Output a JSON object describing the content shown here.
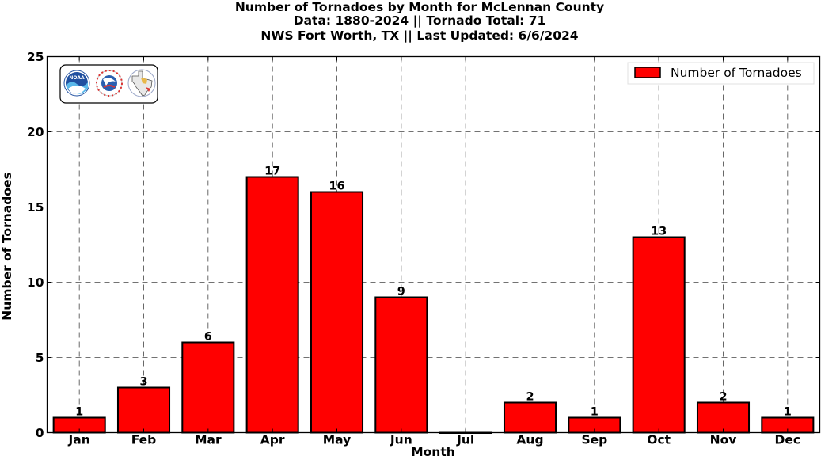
{
  "chart_data": {
    "type": "bar",
    "title_lines": [
      "Number of Tornadoes by Month for McLennan County",
      "Data: 1880-2024 || Tornado Total: 71",
      "NWS Fort Worth, TX || Last Updated: 6/6/2024"
    ],
    "xlabel": "Month",
    "ylabel": "Number of Tornadoes",
    "categories": [
      "Jan",
      "Feb",
      "Mar",
      "Apr",
      "May",
      "Jun",
      "Jul",
      "Aug",
      "Sep",
      "Oct",
      "Nov",
      "Dec"
    ],
    "values": [
      1,
      3,
      6,
      17,
      16,
      9,
      0,
      2,
      1,
      13,
      2,
      1
    ],
    "data_labels": [
      "1",
      "3",
      "6",
      "17",
      "16",
      "9",
      "",
      "2",
      "1",
      "13",
      "2",
      "1"
    ],
    "ylim": [
      0,
      25
    ],
    "yticks": [
      0,
      5,
      10,
      15,
      20,
      25
    ],
    "grid": true,
    "legend": {
      "position": "top-right",
      "entries": [
        "Number of Tornadoes"
      ]
    },
    "bar_color": "#ff0000",
    "edge_color": "#000000",
    "logos": [
      "noaa-logo",
      "nws-logo",
      "texas-logo"
    ]
  }
}
